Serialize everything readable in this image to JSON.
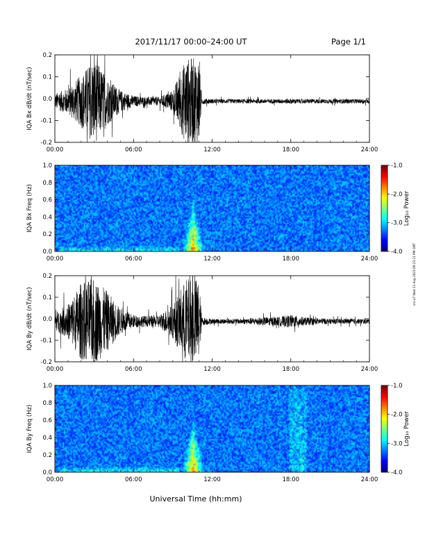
{
  "header": {
    "title": "2017/11/17  00:00–24:00 UT",
    "page": "Page 1/1"
  },
  "side_stamp": "cm-a7 Wed 23 Aug 2023 09:23:21 PM GMT",
  "chart_data": [
    {
      "type": "line",
      "ylabel": "IQA Bx dB/dt (nT/sec)",
      "xlim": [
        0,
        24
      ],
      "ylim": [
        -0.2,
        0.2
      ],
      "x_ticks": [
        "00:00",
        "06:00",
        "12:00",
        "18:00",
        "24:00"
      ],
      "y_ticks": [
        "-0.2",
        "-0.1",
        "0.0",
        "0.1",
        "0.2"
      ],
      "envelope": {
        "hours": [
          0,
          1,
          2,
          3,
          4,
          5,
          6,
          7,
          8,
          9,
          10,
          11,
          11.2,
          12,
          13,
          14,
          15,
          16,
          17,
          18,
          19,
          20,
          21,
          22,
          23,
          24
        ],
        "amplitude": [
          0.035,
          0.06,
          0.12,
          0.2,
          0.11,
          0.05,
          0.025,
          0.02,
          0.02,
          0.05,
          0.2,
          0.2,
          0.015,
          0.01,
          0.01,
          0.01,
          0.01,
          0.01,
          0.01,
          0.012,
          0.01,
          0.01,
          0.01,
          0.01,
          0.01,
          0.01
        ]
      }
    },
    {
      "type": "heatmap",
      "ylabel": "IQA Bx Freq (Hz)",
      "xlim": [
        0,
        24
      ],
      "ylim": [
        0,
        1.0
      ],
      "x_ticks": [
        "00:00",
        "06:00",
        "12:00",
        "18:00",
        "24:00"
      ],
      "y_ticks": [
        "0.0",
        "0.2",
        "0.4",
        "0.6",
        "0.8",
        "1.0"
      ],
      "colorbar": {
        "label": "Log₁₀ Power",
        "range": [
          -4.0,
          -1.0
        ],
        "ticks": [
          "-1.0",
          "-2.0",
          "-3.0",
          "-4.0"
        ]
      },
      "event": {
        "center_hour": 10.5,
        "half_width_hours": 0.9,
        "max_freq": 0.65
      }
    },
    {
      "type": "line",
      "ylabel": "IQA By dB/dt (nT/sec)",
      "xlim": [
        0,
        24
      ],
      "ylim": [
        -0.2,
        0.2
      ],
      "x_ticks": [
        "00:00",
        "06:00",
        "12:00",
        "18:00",
        "24:00"
      ],
      "y_ticks": [
        "-0.2",
        "-0.1",
        "0.0",
        "0.1",
        "0.2"
      ],
      "envelope": {
        "hours": [
          0,
          1,
          2,
          3,
          4,
          5,
          6,
          7,
          8,
          9,
          10,
          11,
          11.2,
          12,
          13,
          14,
          15,
          16,
          17,
          18,
          19,
          20,
          21,
          22,
          23,
          24
        ],
        "amplitude": [
          0.04,
          0.08,
          0.18,
          0.2,
          0.14,
          0.06,
          0.03,
          0.025,
          0.03,
          0.08,
          0.2,
          0.2,
          0.02,
          0.012,
          0.012,
          0.012,
          0.015,
          0.02,
          0.02,
          0.03,
          0.02,
          0.015,
          0.012,
          0.012,
          0.012,
          0.012
        ]
      }
    },
    {
      "type": "heatmap",
      "ylabel": "IQA By Freq (Hz)",
      "xlim": [
        0,
        24
      ],
      "ylim": [
        0,
        1.0
      ],
      "x_ticks": [
        "00:00",
        "06:00",
        "12:00",
        "18:00",
        "24:00"
      ],
      "y_ticks": [
        "0.0",
        "0.2",
        "0.4",
        "0.6",
        "0.8",
        "1.0"
      ],
      "colorbar": {
        "label": "Log₁₀ Power",
        "range": [
          -4.0,
          -1.0
        ],
        "ticks": [
          "-1.0",
          "-2.0",
          "-3.0",
          "-4.0"
        ]
      },
      "event": {
        "center_hour": 10.5,
        "half_width_hours": 0.9,
        "max_freq": 0.65
      },
      "secondary_event": {
        "hour_range": [
          17.8,
          19.2
        ],
        "max_freq": 1.0
      }
    }
  ],
  "xlabel": "Universal Time (hh:mm)"
}
